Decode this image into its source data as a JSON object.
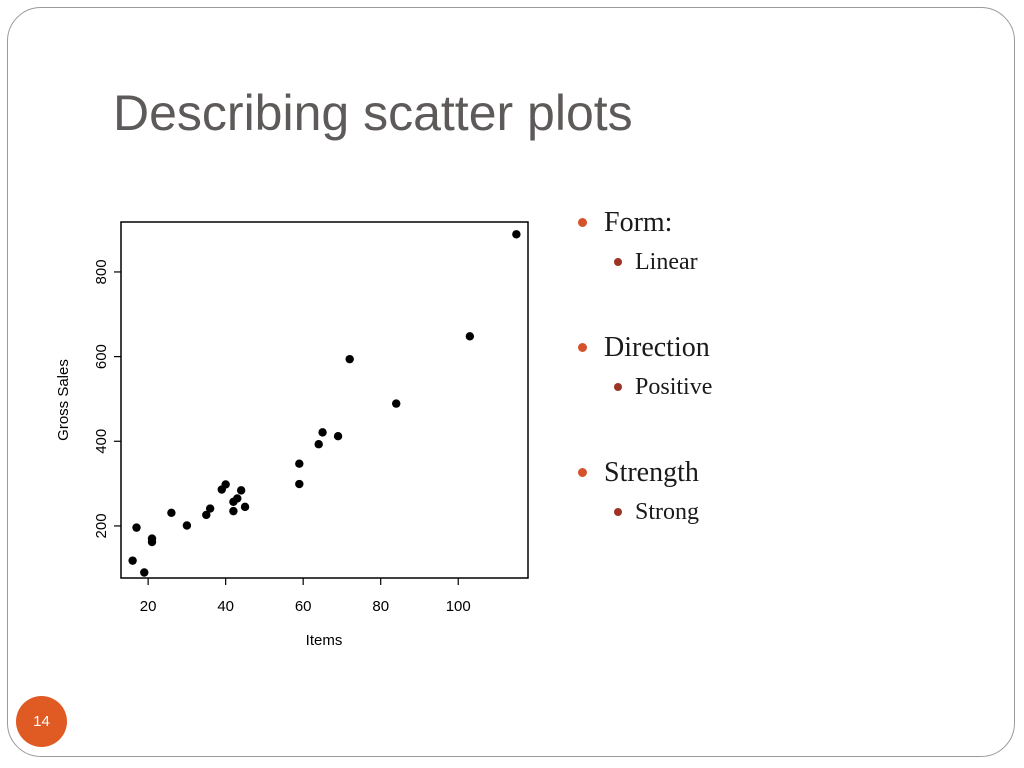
{
  "slide": {
    "title": "Describing scatter plots",
    "page_number": "14",
    "accent_color": "#e05a23"
  },
  "bullets": [
    {
      "label": "Form:",
      "sub": "Linear"
    },
    {
      "label": "Direction",
      "sub": "Positive"
    },
    {
      "label": "Strength",
      "sub": "Strong"
    }
  ],
  "chart_data": {
    "type": "scatter",
    "title": "",
    "xlabel": "Items",
    "ylabel": "Gross Sales",
    "xlim": [
      13,
      118
    ],
    "ylim": [
      77,
      918
    ],
    "xticks": [
      20,
      40,
      60,
      80,
      100
    ],
    "yticks": [
      200,
      400,
      600,
      800
    ],
    "grid": false,
    "legend": "none",
    "point_color": "#000000",
    "points": [
      {
        "x": 16,
        "y": 118
      },
      {
        "x": 17,
        "y": 196
      },
      {
        "x": 19,
        "y": 90
      },
      {
        "x": 21,
        "y": 170
      },
      {
        "x": 21,
        "y": 162
      },
      {
        "x": 26,
        "y": 231
      },
      {
        "x": 30,
        "y": 201
      },
      {
        "x": 35,
        "y": 226
      },
      {
        "x": 36,
        "y": 241
      },
      {
        "x": 39,
        "y": 286
      },
      {
        "x": 40,
        "y": 298
      },
      {
        "x": 42,
        "y": 257
      },
      {
        "x": 42,
        "y": 235
      },
      {
        "x": 43,
        "y": 265
      },
      {
        "x": 44,
        "y": 284
      },
      {
        "x": 45,
        "y": 245
      },
      {
        "x": 59,
        "y": 347
      },
      {
        "x": 59,
        "y": 299
      },
      {
        "x": 64,
        "y": 393
      },
      {
        "x": 65,
        "y": 421
      },
      {
        "x": 69,
        "y": 412
      },
      {
        "x": 72,
        "y": 594
      },
      {
        "x": 84,
        "y": 489
      },
      {
        "x": 103,
        "y": 648
      },
      {
        "x": 115,
        "y": 889
      }
    ]
  }
}
